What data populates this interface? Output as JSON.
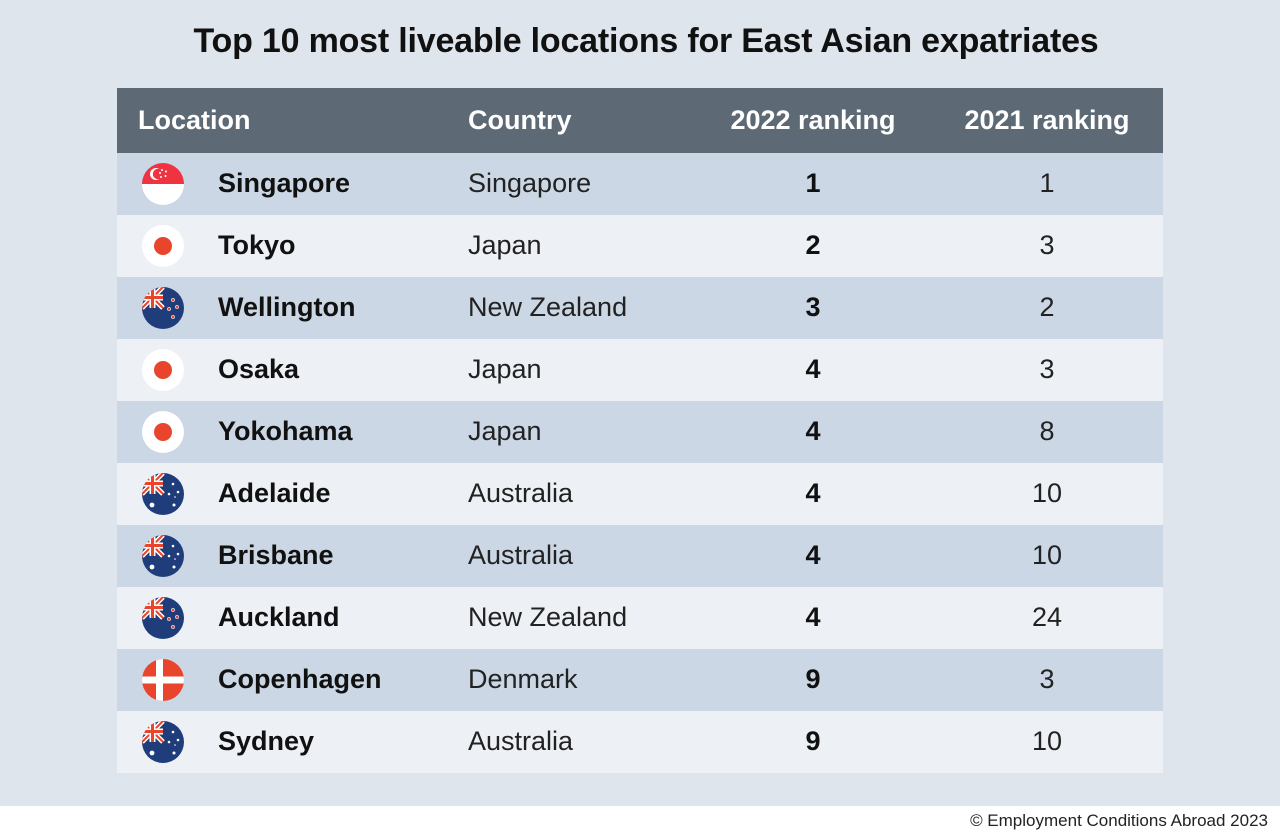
{
  "title": "Top 10 most liveable locations for East Asian expatriates",
  "columns": [
    "Location",
    "Country",
    "2022 ranking",
    "2021 ranking"
  ],
  "colors": {
    "header_bg": "#5d6a75",
    "row_odd": "#cbd7e5",
    "row_even": "#edf1f5",
    "page_bg": "#dfe5ec"
  },
  "chart_data": {
    "type": "table",
    "title": "Top 10 most liveable locations for East Asian expatriates",
    "columns": [
      "Location",
      "Country",
      "2022 ranking",
      "2021 ranking"
    ],
    "rows": [
      {
        "location": "Singapore",
        "country": "Singapore",
        "rank_2022": "1",
        "rank_2021": "1",
        "flag": "singapore-flag-icon"
      },
      {
        "location": "Tokyo",
        "country": "Japan",
        "rank_2022": "2",
        "rank_2021": "3",
        "flag": "japan-flag-icon"
      },
      {
        "location": "Wellington",
        "country": "New Zealand",
        "rank_2022": "3",
        "rank_2021": "2",
        "flag": "new-zealand-flag-icon"
      },
      {
        "location": "Osaka",
        "country": "Japan",
        "rank_2022": "4",
        "rank_2021": "3",
        "flag": "japan-flag-icon"
      },
      {
        "location": "Yokohama",
        "country": "Japan",
        "rank_2022": "4",
        "rank_2021": "8",
        "flag": "japan-flag-icon"
      },
      {
        "location": "Adelaide",
        "country": "Australia",
        "rank_2022": "4",
        "rank_2021": "10",
        "flag": "australia-flag-icon"
      },
      {
        "location": "Brisbane",
        "country": "Australia",
        "rank_2022": "4",
        "rank_2021": "10",
        "flag": "australia-flag-icon"
      },
      {
        "location": "Auckland",
        "country": "New Zealand",
        "rank_2022": "4",
        "rank_2021": "24",
        "flag": "new-zealand-flag-icon"
      },
      {
        "location": "Copenhagen",
        "country": "Denmark",
        "rank_2022": "9",
        "rank_2021": "3",
        "flag": "denmark-flag-icon"
      },
      {
        "location": "Sydney",
        "country": "Australia",
        "rank_2022": "9",
        "rank_2021": "10",
        "flag": "australia-flag-icon"
      }
    ]
  },
  "credit": "© Employment Conditions Abroad 2023"
}
